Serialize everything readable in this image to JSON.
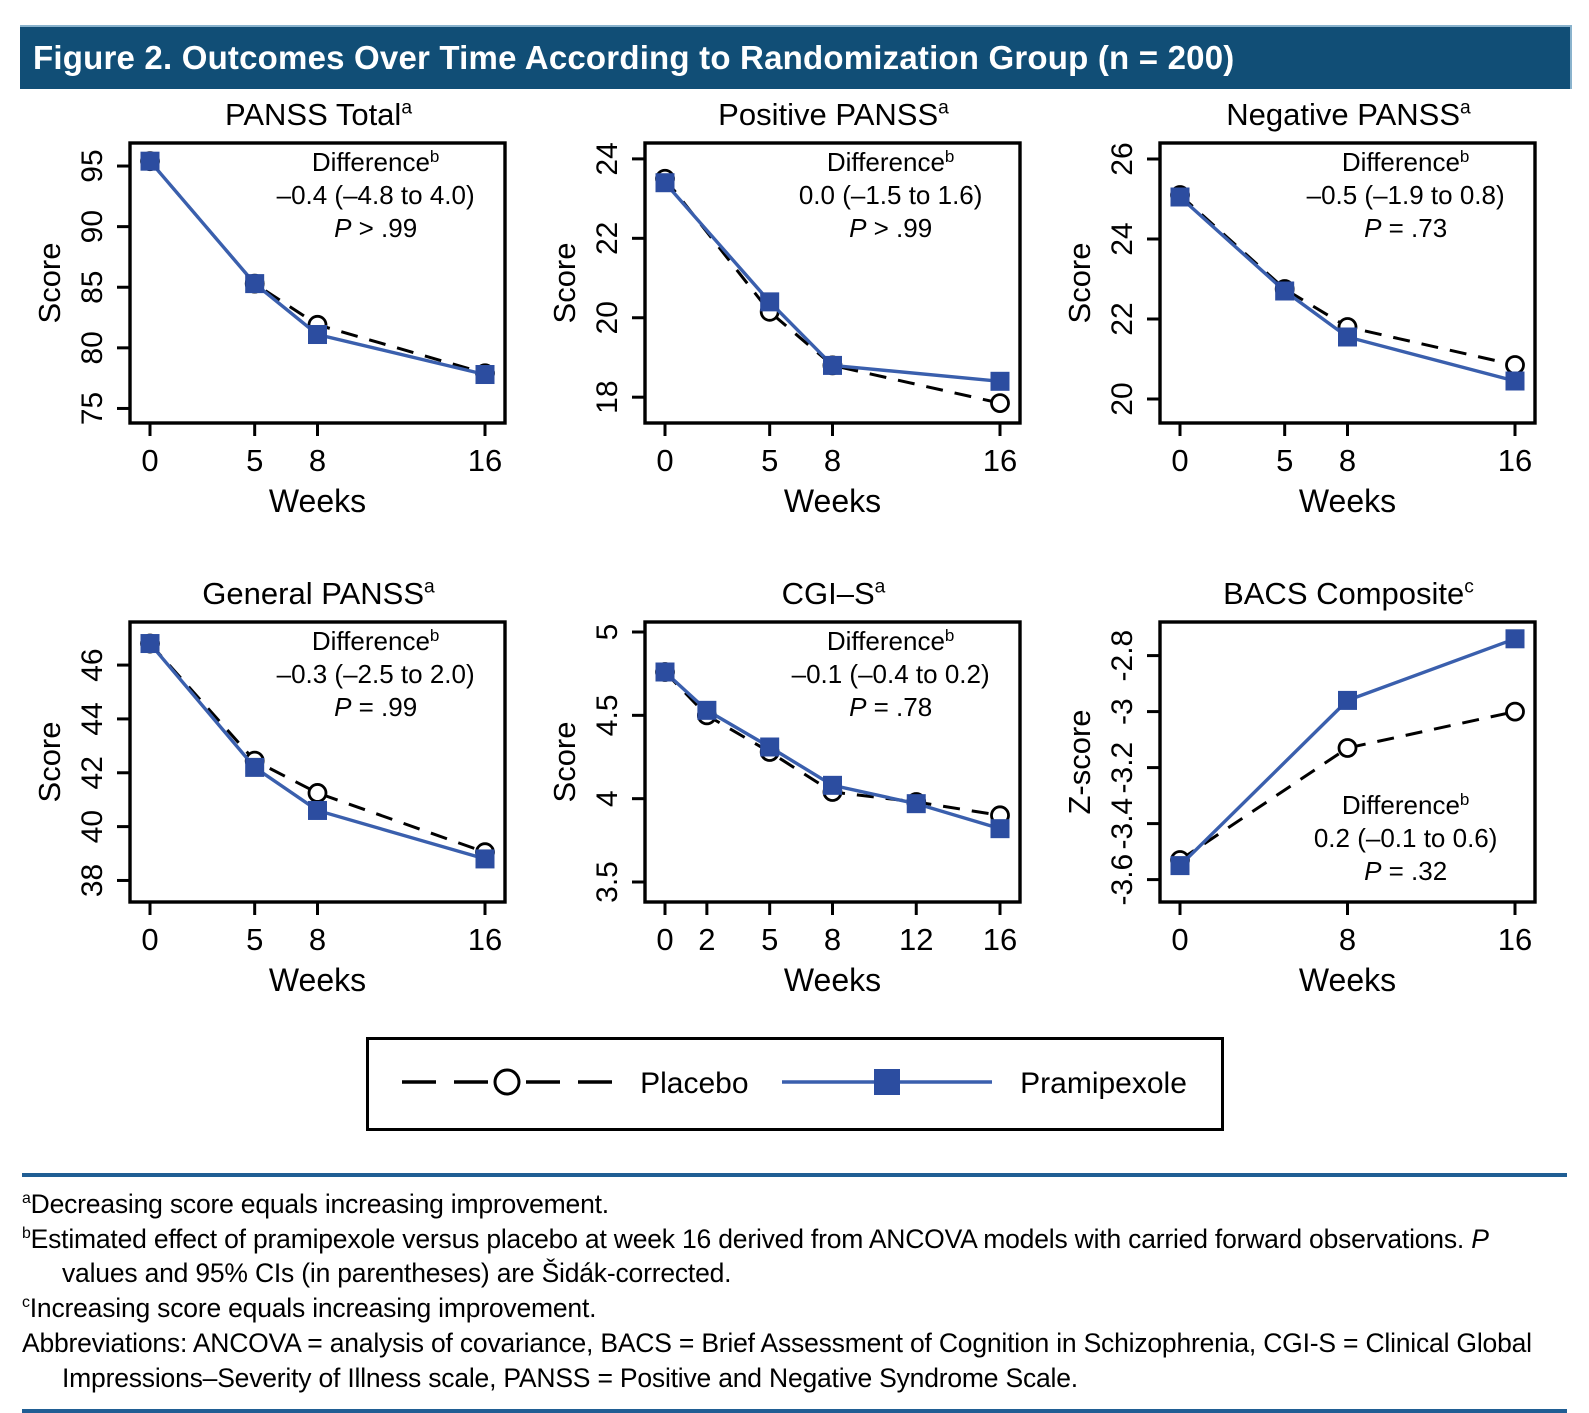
{
  "header": {
    "title": "Figure 2. Outcomes Over Time According to Randomization Group (n = 200)"
  },
  "colors": {
    "header_bg": "#114E76",
    "rule_blue": "#205E94",
    "pramipexole_line_blue": "#3A5FAD",
    "pramipexole_marker_blue": "#2C4DA0",
    "placebo_black": "#000000",
    "header_text": "#FFFFFF"
  },
  "legend": {
    "placebo_label": "Placebo",
    "pramipexole_label": "Pramipexole"
  },
  "chart_data": [
    {
      "type": "line",
      "title": "PANSS Total",
      "title_sup": "a",
      "xlabel": "Weeks",
      "ylabel": "Score",
      "xlim": [
        0,
        16
      ],
      "x_ticks": [
        0,
        5,
        8,
        16
      ],
      "ylim": [
        73.8,
        96.9
      ],
      "y_ticks": [
        75,
        80,
        85,
        90,
        95
      ],
      "y_tick_labels": [
        "75",
        "80",
        "85",
        "90",
        "95"
      ],
      "grid": false,
      "annotation": {
        "title": "Difference",
        "sup": "b",
        "ci": "–0.4 (–4.8 to 4.0)",
        "p": "P > .99",
        "position": "top-right"
      },
      "series": [
        {
          "name": "Placebo",
          "style": "dashed-circle",
          "points": [
            [
              0,
              95.4
            ],
            [
              5,
              85.3
            ],
            [
              8,
              81.9
            ],
            [
              16,
              77.9
            ]
          ]
        },
        {
          "name": "Pramipexole",
          "style": "solid-square",
          "points": [
            [
              0,
              95.4
            ],
            [
              5,
              85.3
            ],
            [
              8,
              81.1
            ],
            [
              16,
              77.8
            ]
          ]
        }
      ]
    },
    {
      "type": "line",
      "title": "Positive PANSS",
      "title_sup": "a",
      "xlabel": "Weeks",
      "ylabel": "Score",
      "xlim": [
        0,
        16
      ],
      "x_ticks": [
        0,
        5,
        8,
        16
      ],
      "ylim": [
        17.35,
        24.4
      ],
      "y_ticks": [
        18,
        20,
        22,
        24
      ],
      "y_tick_labels": [
        "18",
        "20",
        "22",
        "24"
      ],
      "grid": false,
      "annotation": {
        "title": "Difference",
        "sup": "b",
        "ci": "0.0 (–1.5 to 1.6)",
        "p": "P > .99",
        "position": "top-right"
      },
      "series": [
        {
          "name": "Placebo",
          "style": "dashed-circle",
          "points": [
            [
              0,
              23.5
            ],
            [
              5,
              20.15
            ],
            [
              8,
              18.8
            ],
            [
              16,
              17.85
            ]
          ]
        },
        {
          "name": "Pramipexole",
          "style": "solid-square",
          "points": [
            [
              0,
              23.4
            ],
            [
              5,
              20.4
            ],
            [
              8,
              18.8
            ],
            [
              16,
              18.4
            ]
          ]
        }
      ]
    },
    {
      "type": "line",
      "title": "Negative PANSS",
      "title_sup": "a",
      "xlabel": "Weeks",
      "ylabel": "Score",
      "xlim": [
        0,
        16
      ],
      "x_ticks": [
        0,
        5,
        8,
        16
      ],
      "ylim": [
        19.4,
        26.4
      ],
      "y_ticks": [
        20,
        22,
        24,
        26
      ],
      "y_tick_labels": [
        "20",
        "22",
        "24",
        "26"
      ],
      "grid": false,
      "annotation": {
        "title": "Difference",
        "sup": "b",
        "ci": "–0.5 (–1.9 to 0.8)",
        "p": "P = .73",
        "position": "top-right"
      },
      "series": [
        {
          "name": "Placebo",
          "style": "dashed-circle",
          "points": [
            [
              0,
              25.1
            ],
            [
              5,
              22.75
            ],
            [
              8,
              21.8
            ],
            [
              16,
              20.85
            ]
          ]
        },
        {
          "name": "Pramipexole",
          "style": "solid-square",
          "points": [
            [
              0,
              25.05
            ],
            [
              5,
              22.7
            ],
            [
              8,
              21.55
            ],
            [
              16,
              20.45
            ]
          ]
        }
      ]
    },
    {
      "type": "line",
      "title": "General PANSS",
      "title_sup": "a",
      "xlabel": "Weeks",
      "ylabel": "Score",
      "xlim": [
        0,
        16
      ],
      "x_ticks": [
        0,
        5,
        8,
        16
      ],
      "ylim": [
        37.2,
        47.6
      ],
      "y_ticks": [
        38,
        40,
        42,
        44,
        46
      ],
      "y_tick_labels": [
        "38",
        "40",
        "42",
        "44",
        "46"
      ],
      "grid": false,
      "annotation": {
        "title": "Difference",
        "sup": "b",
        "ci": "–0.3 (–2.5 to 2.0)",
        "p": "P = .99",
        "position": "top-right"
      },
      "series": [
        {
          "name": "Placebo",
          "style": "dashed-circle",
          "points": [
            [
              0,
              46.8
            ],
            [
              5,
              42.45
            ],
            [
              8,
              41.25
            ],
            [
              16,
              39.05
            ]
          ]
        },
        {
          "name": "Pramipexole",
          "style": "solid-square",
          "points": [
            [
              0,
              46.8
            ],
            [
              5,
              42.2
            ],
            [
              8,
              40.6
            ],
            [
              16,
              38.8
            ]
          ]
        }
      ]
    },
    {
      "type": "line",
      "title": "CGI–S",
      "title_sup": "a",
      "xlabel": "Weeks",
      "ylabel": "Score",
      "xlim": [
        0,
        16
      ],
      "x_ticks": [
        0,
        2,
        5,
        8,
        12,
        16
      ],
      "ylim": [
        3.38,
        5.06
      ],
      "y_ticks": [
        3.5,
        4,
        4.5,
        5
      ],
      "y_tick_labels": [
        "3.5",
        "4",
        "4.5",
        "5"
      ],
      "grid": false,
      "annotation": {
        "title": "Difference",
        "sup": "b",
        "ci": "–0.1 (–0.4 to 0.2)",
        "p": "P = .78",
        "position": "top-right"
      },
      "series": [
        {
          "name": "Placebo",
          "style": "dashed-circle",
          "points": [
            [
              0,
              4.76
            ],
            [
              2,
              4.5
            ],
            [
              5,
              4.28
            ],
            [
              8,
              4.04
            ],
            [
              12,
              3.98
            ],
            [
              16,
              3.9
            ]
          ]
        },
        {
          "name": "Pramipexole",
          "style": "solid-square",
          "points": [
            [
              0,
              4.76
            ],
            [
              2,
              4.53
            ],
            [
              5,
              4.31
            ],
            [
              8,
              4.08
            ],
            [
              12,
              3.97
            ],
            [
              16,
              3.82
            ]
          ]
        }
      ]
    },
    {
      "type": "line",
      "title": "BACS Composite",
      "title_sup": "c",
      "xlabel": "Weeks",
      "ylabel": "Z-score",
      "xlim": [
        0,
        16
      ],
      "x_ticks": [
        0,
        8,
        16
      ],
      "ylim": [
        -3.68,
        -2.68
      ],
      "y_ticks": [
        -3.6,
        -3.4,
        -3.2,
        -3,
        -2.8
      ],
      "y_tick_labels": [
        "-3.6",
        "-3.4",
        "-3.2",
        "-3",
        "-2.8"
      ],
      "grid": false,
      "annotation": {
        "title": "Difference",
        "sup": "b",
        "ci": "0.2 (–0.1 to 0.6)",
        "p": "P = .32",
        "position": "bottom-right"
      },
      "series": [
        {
          "name": "Placebo",
          "style": "dashed-circle",
          "points": [
            [
              0,
              -3.53
            ],
            [
              8,
              -3.13
            ],
            [
              16,
              -3.0
            ]
          ]
        },
        {
          "name": "Pramipexole",
          "style": "solid-square",
          "points": [
            [
              0,
              -3.55
            ],
            [
              8,
              -2.96
            ],
            [
              16,
              -2.74
            ]
          ]
        }
      ]
    }
  ],
  "footnotes": [
    {
      "id": "a",
      "sup": "a",
      "segments": [
        {
          "text": "Decreasing score equals increasing improvement."
        }
      ]
    },
    {
      "id": "b",
      "sup": "b",
      "segments": [
        {
          "text": "Estimated effect of pramipexole versus placebo at week 16 derived from ANCOVA models with carried forward observations. "
        },
        {
          "text": "P",
          "italic": true
        },
        {
          "text": " values and 95% CIs (in parentheses) are Šidák-corrected."
        }
      ]
    },
    {
      "id": "c",
      "sup": "c",
      "segments": [
        {
          "text": "Increasing score equals increasing improvement."
        }
      ]
    },
    {
      "id": "abbreviations",
      "sup": "",
      "segments": [
        {
          "text": "Abbreviations: ANCOVA = analysis of covariance, BACS = Brief Assessment of Cognition in Schizophrenia, CGI-S = Clinical Global Impressions–Severity of Illness scale, PANSS = Positive and Negative Syndrome Scale."
        }
      ]
    }
  ]
}
